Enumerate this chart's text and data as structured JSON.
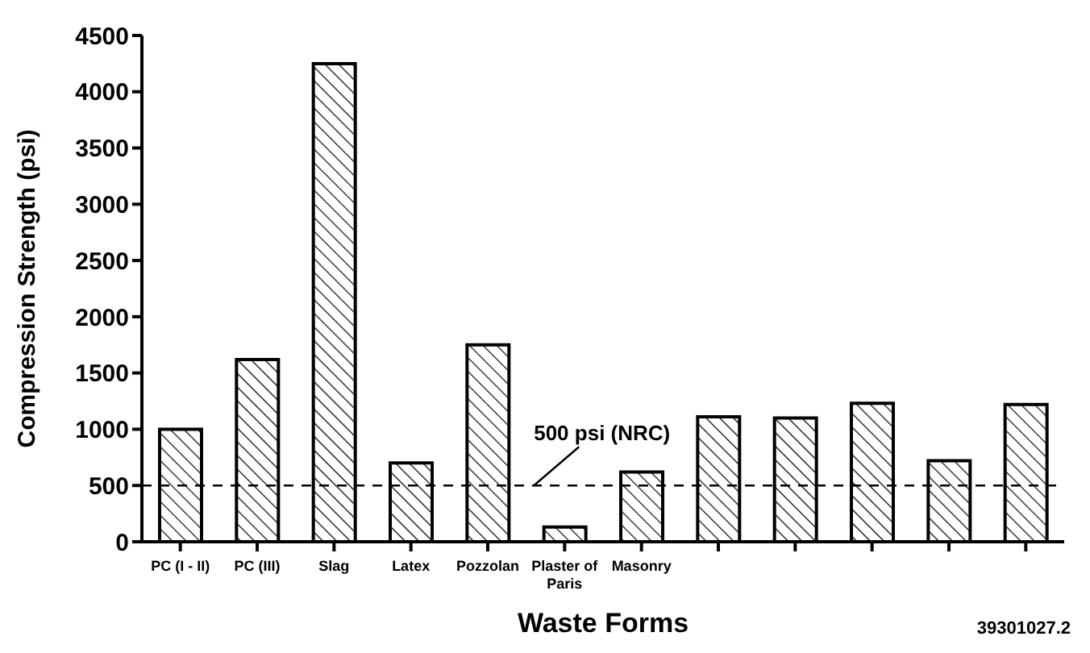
{
  "chart_data": {
    "type": "bar",
    "xlabel": "Waste Forms",
    "ylabel": "Compression Strength (psi)",
    "categories": [
      "PC (I - II)",
      "PC (III)",
      "Slag",
      "Latex",
      "Pozzolan",
      "Plaster of Paris",
      "Masonry",
      null,
      null,
      null,
      null,
      null
    ],
    "values": [
      1000,
      1620,
      4250,
      700,
      1750,
      130,
      620,
      1110,
      1100,
      1230,
      720,
      1220
    ],
    "color": "#000000",
    "ylim": [
      0,
      4500
    ],
    "yticks": [
      0,
      500,
      1000,
      1500,
      2000,
      2500,
      3000,
      3500,
      4000,
      4500
    ],
    "grid": false,
    "ref_lines": [
      {
        "axis": "y",
        "value": 500,
        "label": "500 psi (NRC)",
        "line_style": "dashed",
        "color": "#000000"
      }
    ],
    "annotations": [
      "39301027.2"
    ]
  }
}
